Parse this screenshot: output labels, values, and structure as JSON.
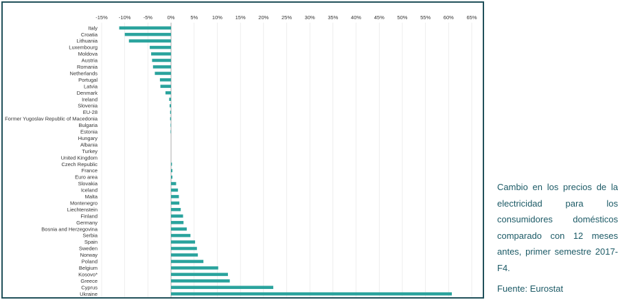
{
  "caption": "Cambio en los precios de la electricidad para los consumidores domésticos comparado con 12 meses antes, primer semestre 2017-F4.",
  "source": "Fuente: Eurostat",
  "colors": {
    "bar": "#2aa39d",
    "frame": "#1f4f59",
    "caption": "#1c5a66",
    "grid": "#e2e2e2"
  },
  "chart_data": {
    "type": "bar",
    "orientation": "horizontal",
    "xlim": [
      -15,
      65
    ],
    "xticks": [
      -15,
      -10,
      -5,
      0,
      5,
      10,
      15,
      20,
      25,
      30,
      35,
      40,
      45,
      50,
      55,
      60,
      65
    ],
    "tick_suffix": "%",
    "grid": true,
    "categories": [
      "Italy",
      "Croatia",
      "Lithuania",
      "Luxembourg",
      "Moldova",
      "Austria",
      "Romania",
      "Netherlands",
      "Portugal",
      "Latvia",
      "Denmark",
      "Ireland",
      "Slovenia",
      "EU-28",
      "Former Yugoslav Republic of Macedonia",
      "Bulgaria",
      "Estonia",
      "Hungary",
      "Albania",
      "Turkey",
      "United Kingdom",
      "Czech Republic",
      "France",
      "Euro area",
      "Slovakia",
      "Iceland",
      "Malta",
      "Montenegro",
      "Liechtenstein",
      "Finland",
      "Germany",
      "Bosnia and Herzegovina",
      "Serbia",
      "Spain",
      "Sweden",
      "Norway",
      "Poland",
      "Belgium",
      "Kosovo*",
      "Greece",
      "Cyprus",
      "Ukraine"
    ],
    "values": [
      -11.2,
      -10.0,
      -9.1,
      -4.6,
      -4.3,
      -4.1,
      -3.9,
      -3.5,
      -2.4,
      -2.3,
      -1.2,
      -0.4,
      -0.3,
      -0.2,
      -0.2,
      -0.1,
      -0.1,
      0.0,
      0.0,
      0.0,
      0.0,
      0.2,
      0.3,
      0.3,
      1.1,
      1.5,
      1.7,
      1.8,
      2.1,
      2.6,
      2.7,
      3.4,
      4.2,
      5.2,
      5.6,
      5.8,
      7.0,
      10.2,
      12.3,
      12.7,
      22.1,
      60.7
    ]
  }
}
